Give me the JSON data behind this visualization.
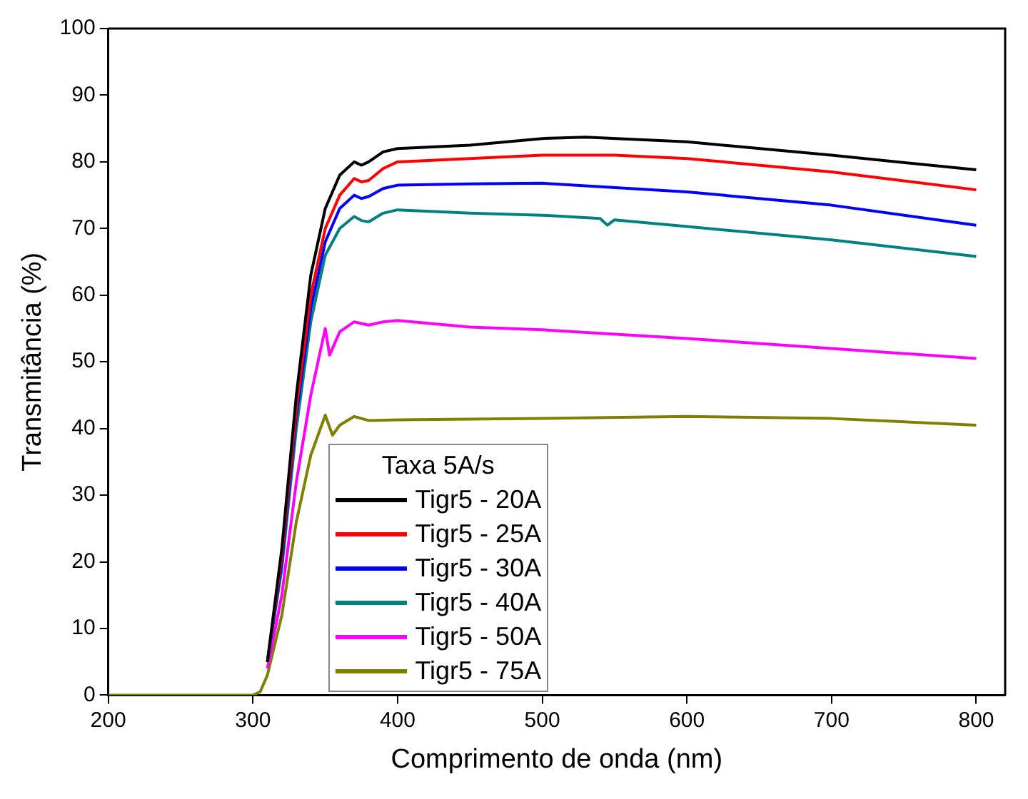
{
  "chart_data": {
    "type": "line",
    "xlabel": "Comprimento de onda (nm)",
    "ylabel": "Transmitância (%)",
    "legend_title": "Taxa 5A/s",
    "legend": "bottom left",
    "grid": false,
    "marker": "none",
    "line_style": "solid",
    "xlim": [
      200,
      820
    ],
    "xticks": [
      200,
      300,
      400,
      500,
      600,
      700,
      800
    ],
    "ylim": [
      0,
      100
    ],
    "yticks": [
      0,
      10,
      20,
      30,
      40,
      50,
      60,
      70,
      80,
      90,
      100
    ],
    "series": [
      {
        "name": "Tigr5 - 20A",
        "color": "#000000",
        "x": [
          310,
          320,
          330,
          340,
          350,
          360,
          370,
          375,
          380,
          390,
          400,
          450,
          500,
          530,
          600,
          700,
          800
        ],
        "values": [
          5,
          22,
          45,
          63,
          73,
          78,
          80,
          79.5,
          80,
          81.5,
          82,
          82.5,
          83.5,
          83.7,
          83,
          81,
          78.8
        ]
      },
      {
        "name": "Tigr5 - 25A",
        "color": "#ff0000",
        "x": [
          310,
          320,
          330,
          340,
          350,
          360,
          370,
          375,
          380,
          390,
          400,
          450,
          500,
          550,
          600,
          700,
          800
        ],
        "values": [
          5,
          21,
          43,
          60,
          70,
          75,
          77.5,
          77,
          77.2,
          79,
          80,
          80.5,
          81,
          81,
          80.5,
          78.5,
          75.8
        ]
      },
      {
        "name": "Tigr5 - 30A",
        "color": "#0000ff",
        "x": [
          310,
          320,
          330,
          340,
          350,
          360,
          370,
          375,
          380,
          390,
          400,
          450,
          500,
          600,
          700,
          800
        ],
        "values": [
          5,
          20,
          42,
          58,
          68,
          73,
          75,
          74.5,
          74.8,
          76,
          76.5,
          76.7,
          76.8,
          75.5,
          73.5,
          70.5
        ]
      },
      {
        "name": "Tigr5 - 40A",
        "color": "#008080",
        "x": [
          310,
          320,
          330,
          340,
          350,
          360,
          370,
          375,
          380,
          390,
          400,
          450,
          500,
          540,
          545,
          550,
          600,
          700,
          800
        ],
        "values": [
          5,
          19,
          40,
          56,
          66,
          70,
          71.8,
          71.2,
          71,
          72.3,
          72.8,
          72.3,
          72,
          71.5,
          70.5,
          71.3,
          70.3,
          68.3,
          65.8
        ]
      },
      {
        "name": "Tigr5 - 50A",
        "color": "#ff00ff",
        "x": [
          310,
          320,
          330,
          340,
          345,
          350,
          353,
          360,
          370,
          380,
          390,
          400,
          450,
          500,
          600,
          700,
          800
        ],
        "values": [
          4,
          15,
          32,
          45,
          50,
          55,
          51,
          54.5,
          56,
          55.5,
          56,
          56.2,
          55.2,
          54.8,
          53.5,
          52,
          50.5
        ]
      },
      {
        "name": "Tigr5 - 75A",
        "color": "#808000",
        "x": [
          200,
          300,
          305,
          310,
          320,
          330,
          340,
          345,
          350,
          355,
          360,
          370,
          380,
          400,
          500,
          600,
          700,
          800
        ],
        "values": [
          0,
          0,
          0.5,
          3,
          12,
          26,
          36,
          39,
          42,
          39,
          40.5,
          41.8,
          41.2,
          41.3,
          41.5,
          41.8,
          41.5,
          40.5
        ]
      }
    ]
  }
}
